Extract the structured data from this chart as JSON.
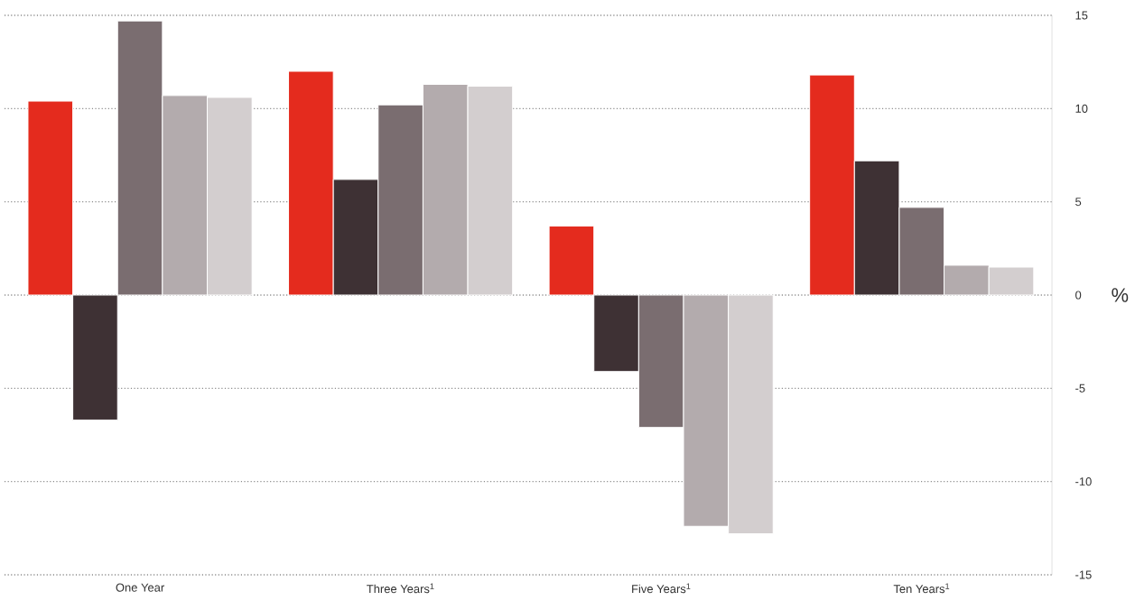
{
  "chart_data": {
    "type": "bar",
    "categories": [
      "One Year",
      "Three Years$^{1}$",
      "Five Years$^{1}$",
      "Ten Years$^{1}$"
    ],
    "series": [
      {
        "color": "#e42b1e",
        "values": [
          10.4,
          12.0,
          3.7,
          11.8
        ]
      },
      {
        "color": "#3e3134",
        "values": [
          -6.7,
          6.2,
          -4.1,
          7.2
        ]
      },
      {
        "color": "#7a6d70",
        "values": [
          14.7,
          10.2,
          -7.1,
          4.7
        ]
      },
      {
        "color": "#b3abad",
        "values": [
          10.7,
          11.3,
          -12.4,
          1.6
        ]
      },
      {
        "color": "#d3cecf",
        "values": [
          10.6,
          11.2,
          -12.8,
          1.5
        ]
      }
    ],
    "ylabel": "%",
    "ylim": [
      -15,
      15
    ],
    "yticks": [
      -15,
      -10,
      -5,
      0,
      5,
      10,
      15
    ],
    "grid": "y"
  }
}
